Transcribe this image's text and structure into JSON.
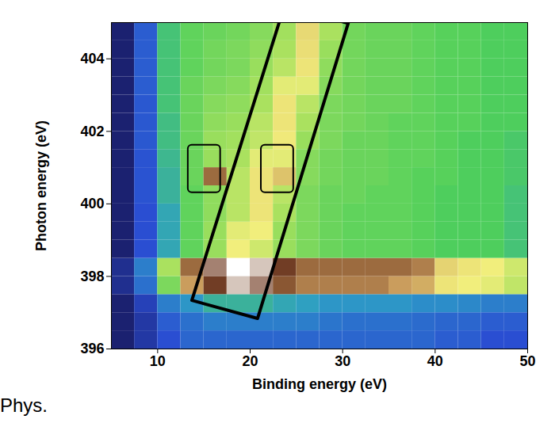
{
  "chart_data": {
    "type": "heatmap",
    "x_label": "Binding energy (eV)",
    "y_label": "Photon energy (eV)",
    "caption": "Phys.",
    "xlim": [
      5,
      50
    ],
    "ylim": [
      396,
      405
    ],
    "xticks": [
      10,
      20,
      30,
      40,
      50
    ],
    "yticks": [
      396,
      398,
      400,
      402,
      404
    ],
    "x_edges": [
      5,
      7.5,
      10,
      12.5,
      15,
      17.5,
      20,
      22.5,
      25,
      27.5,
      30,
      32.5,
      35,
      37.5,
      40,
      42.5,
      45,
      47.5,
      50
    ],
    "y_edges": [
      396,
      396.5,
      397,
      397.5,
      398,
      398.5,
      399,
      399.5,
      400,
      400.5,
      401,
      401.5,
      402,
      402.5,
      403,
      403.5,
      404,
      404.5,
      405
    ],
    "cells": [
      [
        0.5,
        1,
        1.5,
        2,
        2,
        2,
        2,
        2,
        2,
        2,
        2,
        2,
        2,
        2,
        1.8,
        1.8,
        1.5,
        1.5
      ],
      [
        0.5,
        1,
        1.8,
        2.2,
        2.5,
        2.5,
        2.5,
        2.5,
        2.5,
        2.3,
        2.2,
        2.2,
        2.2,
        2.1,
        2,
        2,
        1.8,
        1.8
      ],
      [
        0.5,
        1.2,
        2.5,
        3,
        3.5,
        3.5,
        3.5,
        3.3,
        3.2,
        3,
        3,
        3,
        3,
        2.8,
        2.8,
        2.7,
        2.5,
        2.5
      ],
      [
        0.8,
        2.2,
        4.5,
        7.5,
        8.5,
        9.5,
        9,
        8.2,
        7.8,
        7.8,
        7.8,
        7.8,
        7.5,
        7.2,
        6.2,
        6,
        5.8,
        5.3
      ],
      [
        0.8,
        2.5,
        5,
        8,
        9,
        10,
        9.5,
        8.5,
        8,
        8,
        8,
        8,
        8,
        7.8,
        6.5,
        6.2,
        6,
        5.5
      ],
      [
        0.5,
        1.5,
        3.3,
        4.2,
        4.8,
        6,
        5.5,
        4.8,
        4.5,
        4.3,
        4.2,
        4.2,
        4.2,
        4.1,
        4,
        4,
        4,
        3.8
      ],
      [
        0.5,
        1.5,
        3.3,
        4.2,
        4.8,
        5.8,
        6,
        4.8,
        4.5,
        4.3,
        4.2,
        4.2,
        4.2,
        4.1,
        4,
        4,
        4,
        3.8
      ],
      [
        0.5,
        1.5,
        3.3,
        4.2,
        4.7,
        5.2,
        6.2,
        5,
        4.5,
        4.3,
        4.2,
        4.2,
        4.2,
        4.1,
        4,
        4,
        4,
        3.8
      ],
      [
        0.5,
        1.6,
        3.5,
        4.2,
        4.7,
        5.2,
        6.2,
        5.2,
        4.5,
        4.3,
        4.3,
        4.2,
        4.2,
        4.1,
        4,
        4,
        4,
        3.8
      ],
      [
        0.5,
        1.6,
        3.5,
        4.3,
        8,
        5.2,
        6.2,
        6.8,
        4.6,
        4.4,
        4.3,
        4.3,
        4.2,
        4.1,
        4.1,
        4,
        4,
        3.9
      ],
      [
        0.5,
        1.6,
        3.6,
        4.3,
        4.8,
        5,
        5.8,
        5.8,
        4.6,
        4.4,
        4.3,
        4.3,
        4.2,
        4.2,
        4.1,
        4,
        4,
        3.9
      ],
      [
        0.5,
        1.7,
        3.7,
        4.3,
        4.8,
        4.9,
        5.3,
        6.1,
        4.8,
        4.5,
        4.3,
        4.3,
        4.2,
        4.2,
        4.1,
        4,
        4,
        3.9
      ],
      [
        0.5,
        1.7,
        3.7,
        4.3,
        4.7,
        4.8,
        5.2,
        6.2,
        5,
        4.5,
        4.4,
        4.3,
        4.2,
        4.2,
        4.1,
        4.1,
        4,
        4
      ],
      [
        0.5,
        1.7,
        3.8,
        4.3,
        4.6,
        4.7,
        5,
        6.2,
        5.2,
        4.5,
        4.4,
        4.3,
        4.3,
        4.2,
        4.1,
        4.1,
        4,
        4
      ],
      [
        0.5,
        1.8,
        3.8,
        4.3,
        4.5,
        4.6,
        4.9,
        5.8,
        5.8,
        4.6,
        4.4,
        4.3,
        4.3,
        4.2,
        4.1,
        4.1,
        4,
        4
      ],
      [
        0.5,
        1.8,
        3.8,
        4.2,
        4.4,
        4.5,
        4.8,
        5.2,
        6.2,
        4.7,
        4.4,
        4.3,
        4.3,
        4.2,
        4.1,
        4.1,
        4,
        4
      ],
      [
        0.5,
        1.8,
        3.8,
        4.2,
        4.4,
        4.5,
        4.7,
        5,
        6.3,
        4.8,
        4.4,
        4.3,
        4.3,
        4.2,
        4.1,
        4.1,
        4,
        4
      ],
      [
        0.5,
        1.8,
        3.8,
        4.2,
        4.3,
        4.4,
        4.6,
        4.9,
        6.4,
        5,
        4.4,
        4.3,
        4.3,
        4.2,
        4.1,
        4.1,
        4,
        4
      ]
    ],
    "annotations": {
      "band_outline": {
        "x": [
          23.7,
          30.6,
          20.8,
          13.7,
          23.7
        ],
        "y": [
          405.46,
          404.98,
          396.84,
          397.34,
          405.46
        ]
      },
      "boxes": [
        {
          "x": [
            13.3,
            16.8
          ],
          "y": [
            400.31,
            401.62
          ]
        },
        {
          "x": [
            21.2,
            24.7
          ],
          "y": [
            400.31,
            401.62
          ]
        }
      ]
    }
  }
}
